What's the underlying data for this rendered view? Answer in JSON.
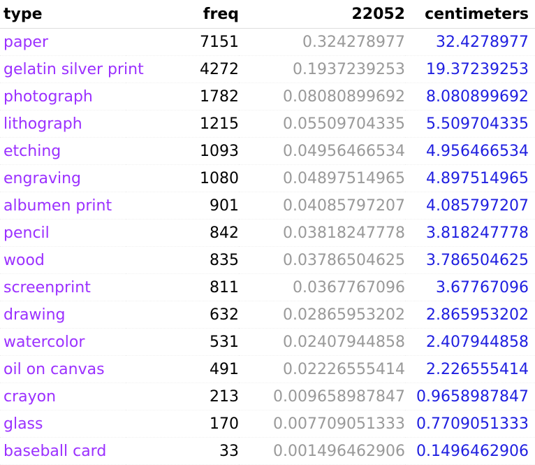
{
  "header": {
    "type": "type",
    "freq": "freq",
    "fraction": "22052",
    "centimeters": "centimeters"
  },
  "colors": {
    "type": "#9b30ff",
    "freq": "#000000",
    "fraction": "#999999",
    "centimeters": "#1f1fe0"
  },
  "rows": [
    {
      "type": "paper",
      "freq": "7151",
      "fraction": "0.324278977",
      "centimeters": "32.4278977"
    },
    {
      "type": "gelatin silver print",
      "freq": "4272",
      "fraction": "0.1937239253",
      "centimeters": "19.37239253"
    },
    {
      "type": "photograph",
      "freq": "1782",
      "fraction": "0.08080899692",
      "centimeters": "8.080899692"
    },
    {
      "type": "lithograph",
      "freq": "1215",
      "fraction": "0.05509704335",
      "centimeters": "5.509704335"
    },
    {
      "type": "etching",
      "freq": "1093",
      "fraction": "0.04956466534",
      "centimeters": "4.956466534"
    },
    {
      "type": "engraving",
      "freq": "1080",
      "fraction": "0.04897514965",
      "centimeters": "4.897514965"
    },
    {
      "type": "albumen print",
      "freq": "901",
      "fraction": "0.04085797207",
      "centimeters": "4.085797207"
    },
    {
      "type": "pencil",
      "freq": "842",
      "fraction": "0.03818247778",
      "centimeters": "3.818247778"
    },
    {
      "type": "wood",
      "freq": "835",
      "fraction": "0.03786504625",
      "centimeters": "3.786504625"
    },
    {
      "type": "screenprint",
      "freq": "811",
      "fraction": "0.0367767096",
      "centimeters": "3.67767096"
    },
    {
      "type": "drawing",
      "freq": "632",
      "fraction": "0.02865953202",
      "centimeters": "2.865953202"
    },
    {
      "type": "watercolor",
      "freq": "531",
      "fraction": "0.02407944858",
      "centimeters": "2.407944858"
    },
    {
      "type": "oil on canvas",
      "freq": "491",
      "fraction": "0.02226555414",
      "centimeters": "2.226555414"
    },
    {
      "type": "crayon",
      "freq": "213",
      "fraction": "0.009658987847",
      "centimeters": "0.9658987847"
    },
    {
      "type": "glass",
      "freq": "170",
      "fraction": "0.007709051333",
      "centimeters": "0.7709051333"
    },
    {
      "type": "baseball card",
      "freq": "33",
      "fraction": "0.001496462906",
      "centimeters": "0.1496462906"
    }
  ]
}
